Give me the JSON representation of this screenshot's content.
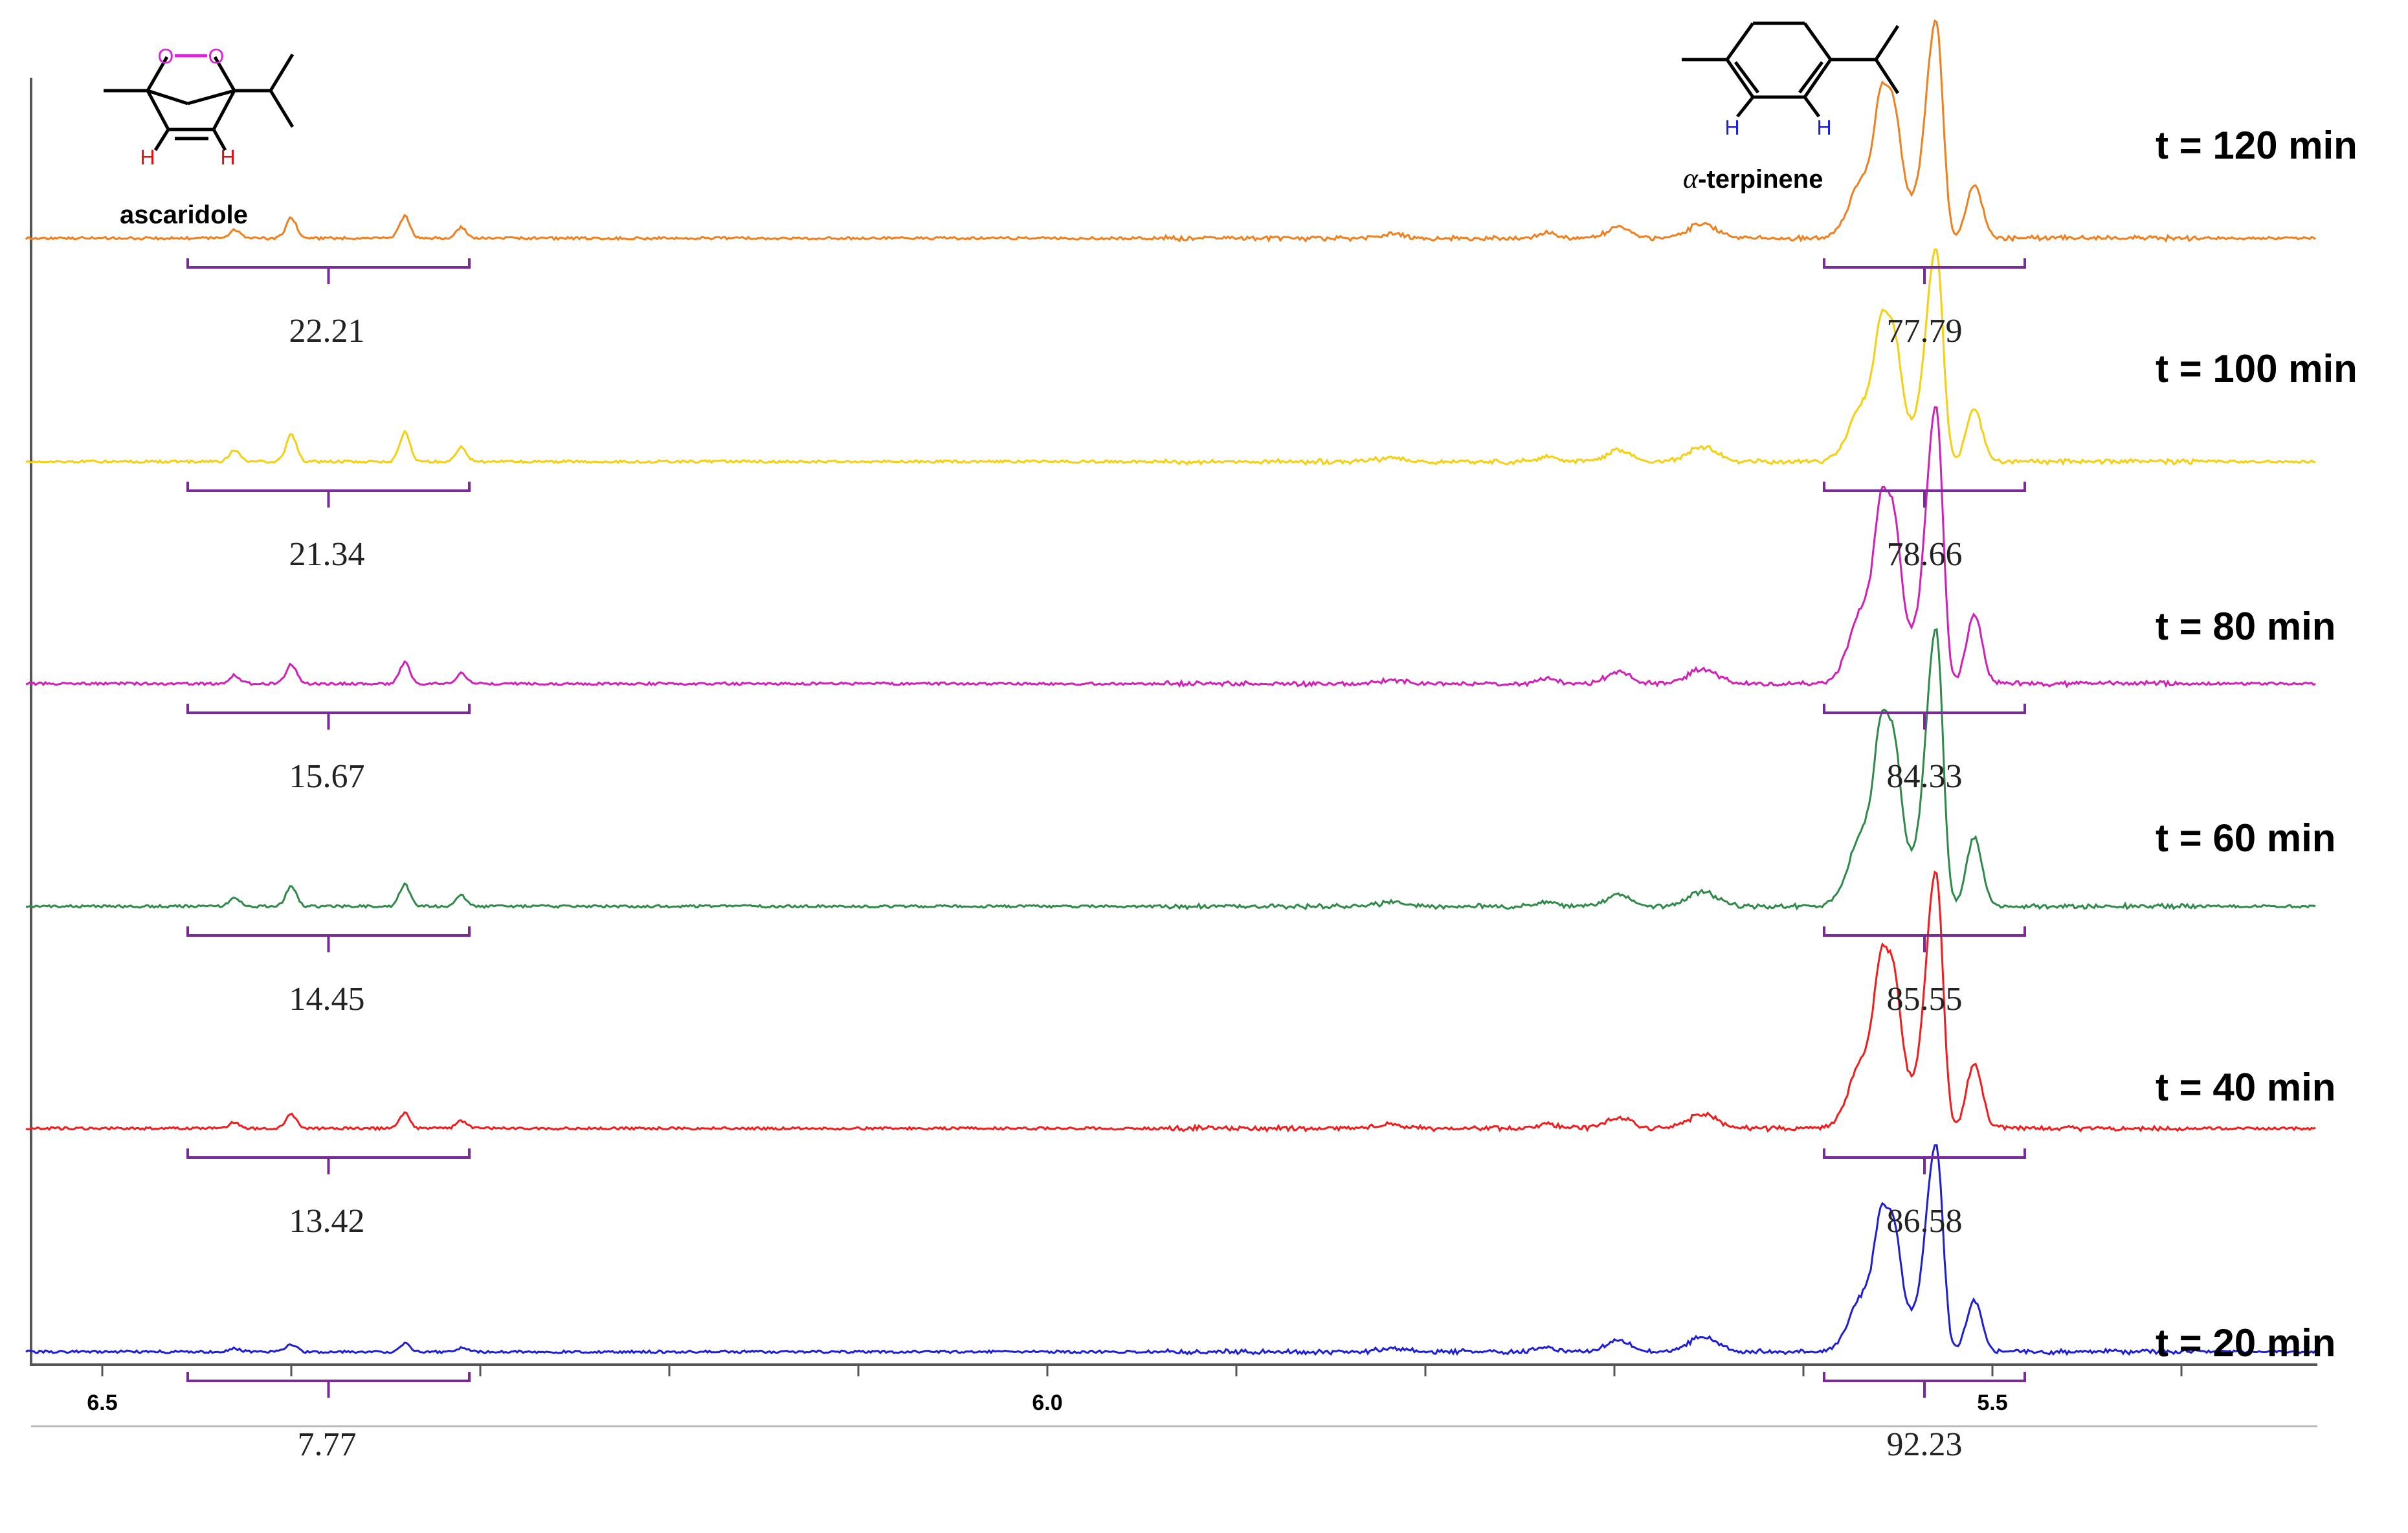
{
  "chart_data": {
    "type": "line",
    "x_axis": {
      "ticks": [
        "6.5",
        "6.0",
        "5.5"
      ],
      "range": [
        6.54,
        5.33
      ],
      "reversed": true
    },
    "structures": {
      "left": {
        "name": "ascaridole",
        "atoms": [
          "O",
          "O",
          "H",
          "H"
        ]
      },
      "right": {
        "name_prefix": "α",
        "name_suffix": "-terpinene",
        "atoms": [
          "H",
          "H"
        ]
      }
    },
    "series": [
      {
        "name": "t = 120 min",
        "color": "#f07f1e",
        "integrals": [
          "22.21",
          "77.79"
        ]
      },
      {
        "name": "t = 100 min",
        "color": "#f5cf10",
        "integrals": [
          "21.34",
          "78.66"
        ]
      },
      {
        "name": "t = 80 min",
        "color": "#d020b8",
        "integrals": [
          "15.67",
          "84.33"
        ]
      },
      {
        "name": "t = 60 min",
        "color": "#2f8a4a",
        "integrals": [
          "14.45",
          "85.55"
        ]
      },
      {
        "name": "t = 40 min",
        "color": "#f21c1c",
        "integrals": [
          "13.42",
          "86.58"
        ]
      },
      {
        "name": "t = 20 min",
        "color": "#1e1ed6",
        "integrals": [
          "7.77",
          "92.23"
        ]
      }
    ],
    "peaks": {
      "ascaridole_ppm": [
        6.43,
        6.4,
        6.34,
        6.31
      ],
      "ascaridole_rel": [
        0.18,
        0.42,
        0.45,
        0.22
      ],
      "terpinene_ppm": [
        5.6,
        5.58,
        5.56,
        5.53,
        5.5
      ],
      "terpinene_rel": [
        0.55,
        0.85,
        0.62,
        1.0,
        0.42
      ]
    },
    "integral_color": "#7a2a9a",
    "grid": false,
    "legend": "right"
  }
}
